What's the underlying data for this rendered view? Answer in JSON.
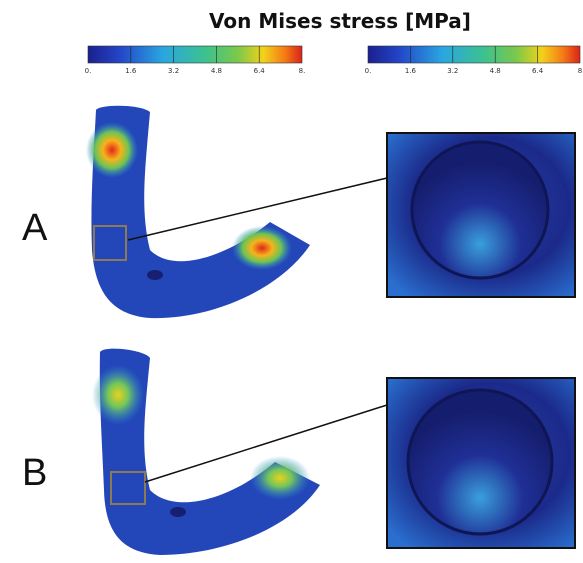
{
  "title": "Von Mises stress [MPa]",
  "colorbars": [
    {
      "ticks": [
        "0.",
        "1.6",
        "3.2",
        "4.8",
        "6.4",
        "8."
      ]
    },
    {
      "ticks": [
        "0.",
        "1.6",
        "3.2",
        "4.8",
        "6.4",
        "8"
      ]
    }
  ],
  "panels": [
    {
      "label": "A"
    },
    {
      "label": "B"
    }
  ]
}
